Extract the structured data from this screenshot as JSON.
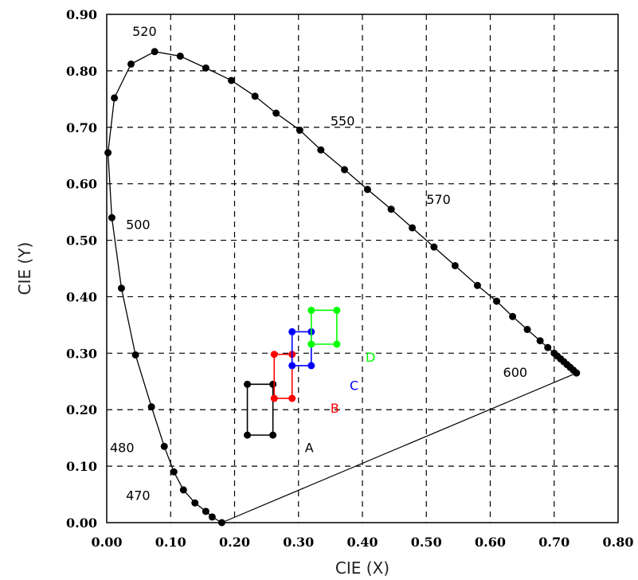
{
  "chart_data": {
    "type": "scatter",
    "title": "",
    "xlabel": "CIE (X)",
    "ylabel": "CIE (Y)",
    "xlim": [
      0,
      0.8
    ],
    "ylim": [
      0,
      0.9
    ],
    "grid": true,
    "x_ticks": [
      "0.00",
      "0.10",
      "0.20",
      "0.30",
      "0.40",
      "0.50",
      "0.60",
      "0.70",
      "0.80"
    ],
    "y_ticks": [
      "0.00",
      "0.10",
      "0.20",
      "0.30",
      "0.40",
      "0.50",
      "0.60",
      "0.70",
      "0.80",
      "0.90"
    ],
    "spectral_locus": [
      [
        0.18,
        0.0
      ],
      [
        0.165,
        0.01
      ],
      [
        0.155,
        0.02
      ],
      [
        0.138,
        0.035
      ],
      [
        0.12,
        0.058
      ],
      [
        0.105,
        0.09
      ],
      [
        0.09,
        0.135
      ],
      [
        0.07,
        0.205
      ],
      [
        0.045,
        0.297
      ],
      [
        0.023,
        0.415
      ],
      [
        0.008,
        0.54
      ],
      [
        0.002,
        0.655
      ],
      [
        0.012,
        0.752
      ],
      [
        0.038,
        0.812
      ],
      [
        0.075,
        0.834
      ],
      [
        0.115,
        0.826
      ],
      [
        0.155,
        0.805
      ],
      [
        0.195,
        0.783
      ],
      [
        0.232,
        0.755
      ],
      [
        0.265,
        0.725
      ],
      [
        0.302,
        0.695
      ],
      [
        0.335,
        0.66
      ],
      [
        0.372,
        0.625
      ],
      [
        0.408,
        0.59
      ],
      [
        0.445,
        0.555
      ],
      [
        0.478,
        0.522
      ],
      [
        0.512,
        0.488
      ],
      [
        0.545,
        0.455
      ],
      [
        0.58,
        0.42
      ],
      [
        0.61,
        0.392
      ],
      [
        0.635,
        0.365
      ],
      [
        0.658,
        0.342
      ],
      [
        0.678,
        0.322
      ],
      [
        0.69,
        0.31
      ],
      [
        0.7,
        0.3
      ],
      [
        0.705,
        0.295
      ],
      [
        0.71,
        0.29
      ],
      [
        0.715,
        0.285
      ],
      [
        0.72,
        0.28
      ],
      [
        0.725,
        0.275
      ],
      [
        0.73,
        0.27
      ],
      [
        0.735,
        0.265
      ]
    ],
    "purple_line": [
      [
        0.735,
        0.265
      ],
      [
        0.18,
        0.0
      ]
    ],
    "wavelength_labels": [
      {
        "text": "520",
        "x": 0.04,
        "y": 0.862
      },
      {
        "text": "550",
        "x": 0.35,
        "y": 0.703
      },
      {
        "text": "570",
        "x": 0.5,
        "y": 0.564
      },
      {
        "text": "500",
        "x": 0.03,
        "y": 0.52
      },
      {
        "text": "600",
        "x": 0.62,
        "y": 0.258
      },
      {
        "text": "480",
        "x": 0.005,
        "y": 0.125
      },
      {
        "text": "470",
        "x": 0.03,
        "y": 0.04
      }
    ],
    "series": [
      {
        "name": "A",
        "color": "#000000",
        "points": [
          [
            0.22,
            0.155
          ],
          [
            0.22,
            0.245
          ],
          [
            0.26,
            0.245
          ],
          [
            0.26,
            0.155
          ]
        ],
        "label_pos": [
          0.31,
          0.125
        ]
      },
      {
        "name": "B",
        "color": "#ff0000",
        "points": [
          [
            0.262,
            0.22
          ],
          [
            0.262,
            0.298
          ],
          [
            0.29,
            0.298
          ],
          [
            0.29,
            0.22
          ]
        ],
        "label_pos": [
          0.35,
          0.195
        ]
      },
      {
        "name": "C",
        "color": "#0000ff",
        "points": [
          [
            0.29,
            0.278
          ],
          [
            0.29,
            0.338
          ],
          [
            0.32,
            0.338
          ],
          [
            0.32,
            0.278
          ]
        ],
        "label_pos": [
          0.38,
          0.235
        ]
      },
      {
        "name": "D",
        "color": "#00ff00",
        "points": [
          [
            0.32,
            0.316
          ],
          [
            0.32,
            0.376
          ],
          [
            0.36,
            0.376
          ],
          [
            0.36,
            0.316
          ]
        ],
        "label_pos": [
          0.405,
          0.285
        ]
      }
    ]
  }
}
